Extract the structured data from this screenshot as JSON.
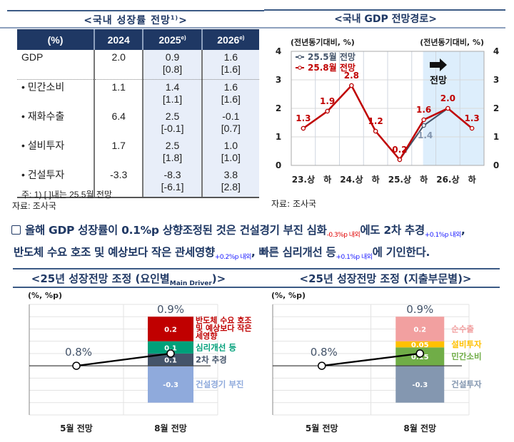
{
  "growth_table": {
    "title": "<국내 성장률 전망",
    "title_sup": "1)",
    "title_end": ">",
    "headers": [
      "(%)",
      "2024",
      "2025",
      "2026"
    ],
    "header_sup": "e)",
    "rows": [
      {
        "label": "GDP",
        "y2024": "2.0",
        "y2025": "0.9",
        "y2025_prev": "[0.8]",
        "y2026": "1.6",
        "y2026_prev": "[1.6]"
      },
      {
        "label": "• 민간소비",
        "y2024": "1.1",
        "y2025": "1.4",
        "y2025_prev": "[1.1]",
        "y2026": "1.6",
        "y2026_prev": "[1.6]"
      },
      {
        "label": "• 재화수출",
        "y2024": "6.4",
        "y2025": "2.5",
        "y2025_prev": "[-0.1]",
        "y2026": "-0.1",
        "y2026_prev": "[0.7]"
      },
      {
        "label": "• 설비투자",
        "y2024": "1.7",
        "y2025": "2.5",
        "y2025_prev": "[1.8]",
        "y2026": "1.0",
        "y2026_prev": "[1.0]"
      },
      {
        "label": "• 건설투자",
        "y2024": "-3.3",
        "y2025": "-8.3",
        "y2025_prev": "[-6.1]",
        "y2026": "3.8",
        "y2026_prev": "[2.8]"
      }
    ],
    "note": "주: 1) [ ]내는 25.5월 전망",
    "source": "자료: 조사국"
  },
  "paragraph": {
    "t1": "올해 GDP 성장률이 0.1%p 상향조정된 것은 건설경기 부진 심화",
    "s1": "-0.3%p 내외",
    "t2": "에도 2차 추경",
    "s2": "+0.1%p 내외",
    "t3": ",",
    "t4": "반도체 수요 호조 및 예상보다 작은 관세영향",
    "s4": "+0.2%p 내외",
    "t5": ", 빠른 심리개선 등",
    "s5": "+0.1%p 내외",
    "t6": "에 기인한다."
  },
  "chart_data": [
    {
      "type": "line",
      "title": "<국내 GDP 전망경로>",
      "ylabel_left": "(전년동기대비, %)",
      "ylabel_right": "(전년동기대비, %)",
      "categories": [
        "23.상",
        "하",
        "24.상",
        "하",
        "25.상",
        "하",
        "26.상",
        "하"
      ],
      "ylim": [
        0,
        4
      ],
      "yticks": [
        "0",
        "1",
        "2",
        "3",
        "4"
      ],
      "grid": true,
      "legend": "top-left",
      "forecast_label": "전망",
      "forecast_start_index": 5,
      "series": [
        {
          "name": "25.5월 전망",
          "color": "#44546a",
          "values": [
            1.3,
            1.9,
            2.8,
            1.2,
            0.2,
            1.4,
            2.0,
            null
          ],
          "labels": [
            null,
            null,
            null,
            null,
            null,
            "1.4",
            null,
            null
          ]
        },
        {
          "name": "25.8월 전망",
          "color": "#c00000",
          "values": [
            1.3,
            1.9,
            2.8,
            1.2,
            0.2,
            1.6,
            2.0,
            1.3
          ],
          "labels": [
            "1.3",
            "1.9",
            "2.8",
            "1.2",
            "0.2",
            "1.6",
            "2.0",
            "1.3"
          ]
        }
      ],
      "source": "자료: 조사국",
      "colors": {
        "forecast_bg": "#ddeefc"
      }
    },
    {
      "type": "bar",
      "title": "<25년 성장전망 조정 (요인별",
      "title_sub": "Main Driver",
      "title_end": ")>",
      "ylabel": "(%, %p)",
      "categories": [
        "5월 전망",
        "8월 전망"
      ],
      "ylim": [
        0.4,
        1.3
      ],
      "base_value": 0.8,
      "base_label": "0.8%",
      "total_value": 0.9,
      "total_label": "0.9%",
      "segments": [
        {
          "name": "2차 추경",
          "value": 0.1,
          "label": "0.1",
          "color": "#44546a"
        },
        {
          "name": "심리개선 등",
          "value": 0.1,
          "label": "0.1",
          "color": "#00a07a"
        },
        {
          "name": "반도체 수요 호조 및 예상보다 작은 관세영향",
          "value": 0.2,
          "label": "0.2",
          "color": "#c00000"
        },
        {
          "name": "건설경기 부진",
          "value": -0.3,
          "label": "-0.3",
          "color": "#8faadc"
        }
      ]
    },
    {
      "type": "bar",
      "title": "<25년 성장전망 조정 (지출부문별)>",
      "ylabel": "(%, %p)",
      "categories": [
        "5월 전망",
        "8월 전망"
      ],
      "ylim": [
        0.4,
        1.3
      ],
      "base_value": 0.8,
      "base_label": "0.8%",
      "total_value": 0.9,
      "total_label": "0.9%",
      "segments": [
        {
          "name": "민간소비",
          "value": 0.15,
          "label": "0.15",
          "color": "#70ad47"
        },
        {
          "name": "설비투자",
          "value": 0.05,
          "label": "0.05",
          "color": "#ffc000"
        },
        {
          "name": "순수출",
          "value": 0.2,
          "label": "0.2",
          "color": "#f2a0a0"
        },
        {
          "name": "건설투자",
          "value": -0.3,
          "label": "-0.3",
          "color": "#8497b0"
        }
      ]
    }
  ]
}
